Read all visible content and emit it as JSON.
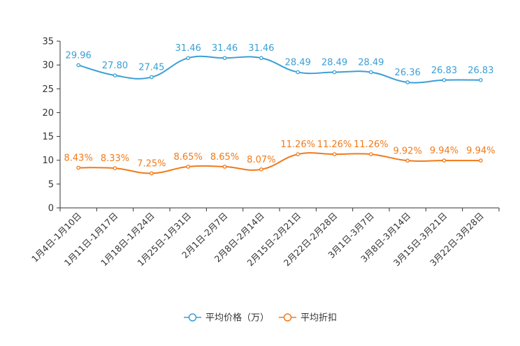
{
  "chart_data": {
    "type": "line",
    "title": "",
    "xlabel": "",
    "ylabel": "",
    "ylim": [
      0,
      35
    ],
    "yticks": [
      0,
      5,
      10,
      15,
      20,
      25,
      30,
      35
    ],
    "grid": false,
    "legend_position": "bottom",
    "categories": [
      "1月4日-1月10日",
      "1月11日-1月17日",
      "1月18日-1月24日",
      "1月25日-1月31日",
      "2月1日-2月7日",
      "2月8日-2月14日",
      "2月15日-2月21日",
      "2月22日-2月28日",
      "3月1日-3月7日",
      "3月8日-3月14日",
      "3月15日-3月21日",
      "3月22日-3月28日"
    ],
    "series": [
      {
        "name": "平均价格（万）",
        "color": "#3a9fd6",
        "values": [
          29.96,
          27.8,
          27.45,
          31.46,
          31.46,
          31.46,
          28.49,
          28.49,
          28.49,
          26.36,
          26.83,
          26.83
        ],
        "labels": [
          "29.96",
          "27.80",
          "27.45",
          "31.46",
          "31.46",
          "31.46",
          "28.49",
          "28.49",
          "28.49",
          "26.36",
          "26.83",
          "26.83"
        ]
      },
      {
        "name": "平均折扣",
        "color": "#f07a1a",
        "values": [
          8.43,
          8.33,
          7.25,
          8.65,
          8.65,
          8.07,
          11.26,
          11.26,
          11.26,
          9.92,
          9.94,
          9.94
        ],
        "labels": [
          "8.43%",
          "8.33%",
          "7.25%",
          "8.65%",
          "8.65%",
          "8.07%",
          "11.26%",
          "11.26%",
          "11.26%",
          "9.92%",
          "9.94%",
          "9.94%"
        ]
      }
    ]
  }
}
